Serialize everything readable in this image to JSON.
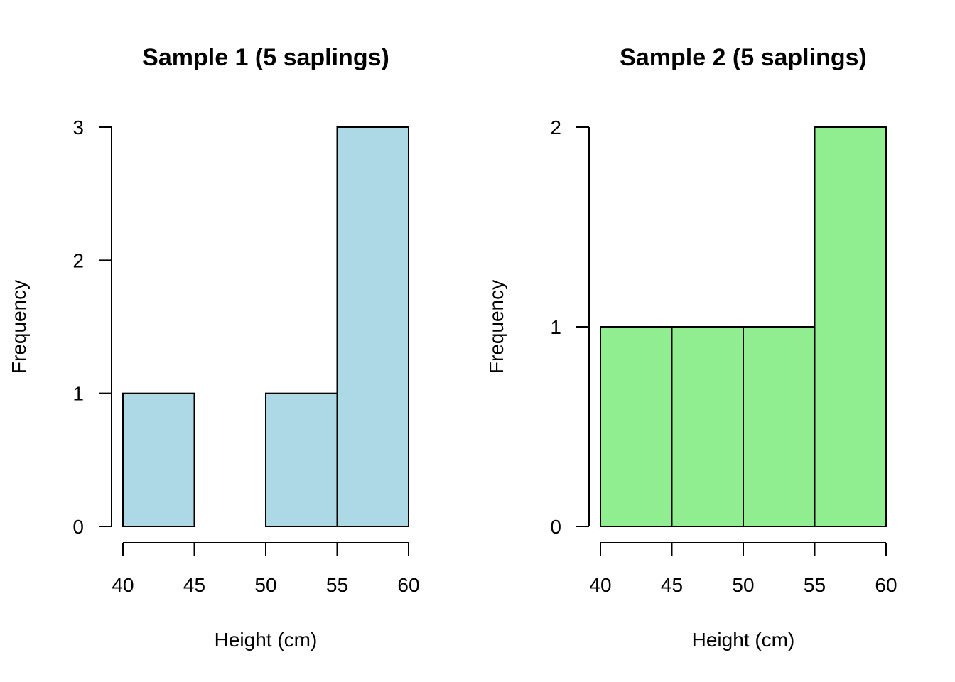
{
  "chart_data": [
    {
      "type": "bar",
      "subtype": "histogram",
      "title": "Sample 1 (5 saplings)",
      "xlabel": "Height (cm)",
      "ylabel": "Frequency",
      "bin_edges": [
        40,
        45,
        50,
        55,
        60
      ],
      "values": [
        1,
        0,
        1,
        3
      ],
      "xlim": [
        40,
        60
      ],
      "ylim": [
        0,
        3
      ],
      "xticks": [
        40,
        45,
        50,
        55,
        60
      ],
      "yticks": [
        0,
        1,
        2,
        3
      ],
      "color": "#ADD8E6",
      "grid": false
    },
    {
      "type": "bar",
      "subtype": "histogram",
      "title": "Sample 2 (5 saplings)",
      "xlabel": "Height (cm)",
      "ylabel": "Frequency",
      "bin_edges": [
        40,
        45,
        50,
        55,
        60
      ],
      "values": [
        1,
        1,
        1,
        2
      ],
      "xlim": [
        40,
        60
      ],
      "ylim": [
        0,
        2
      ],
      "xticks": [
        40,
        45,
        50,
        55,
        60
      ],
      "yticks": [
        0,
        1,
        2
      ],
      "color": "#90EE90",
      "grid": false
    }
  ]
}
